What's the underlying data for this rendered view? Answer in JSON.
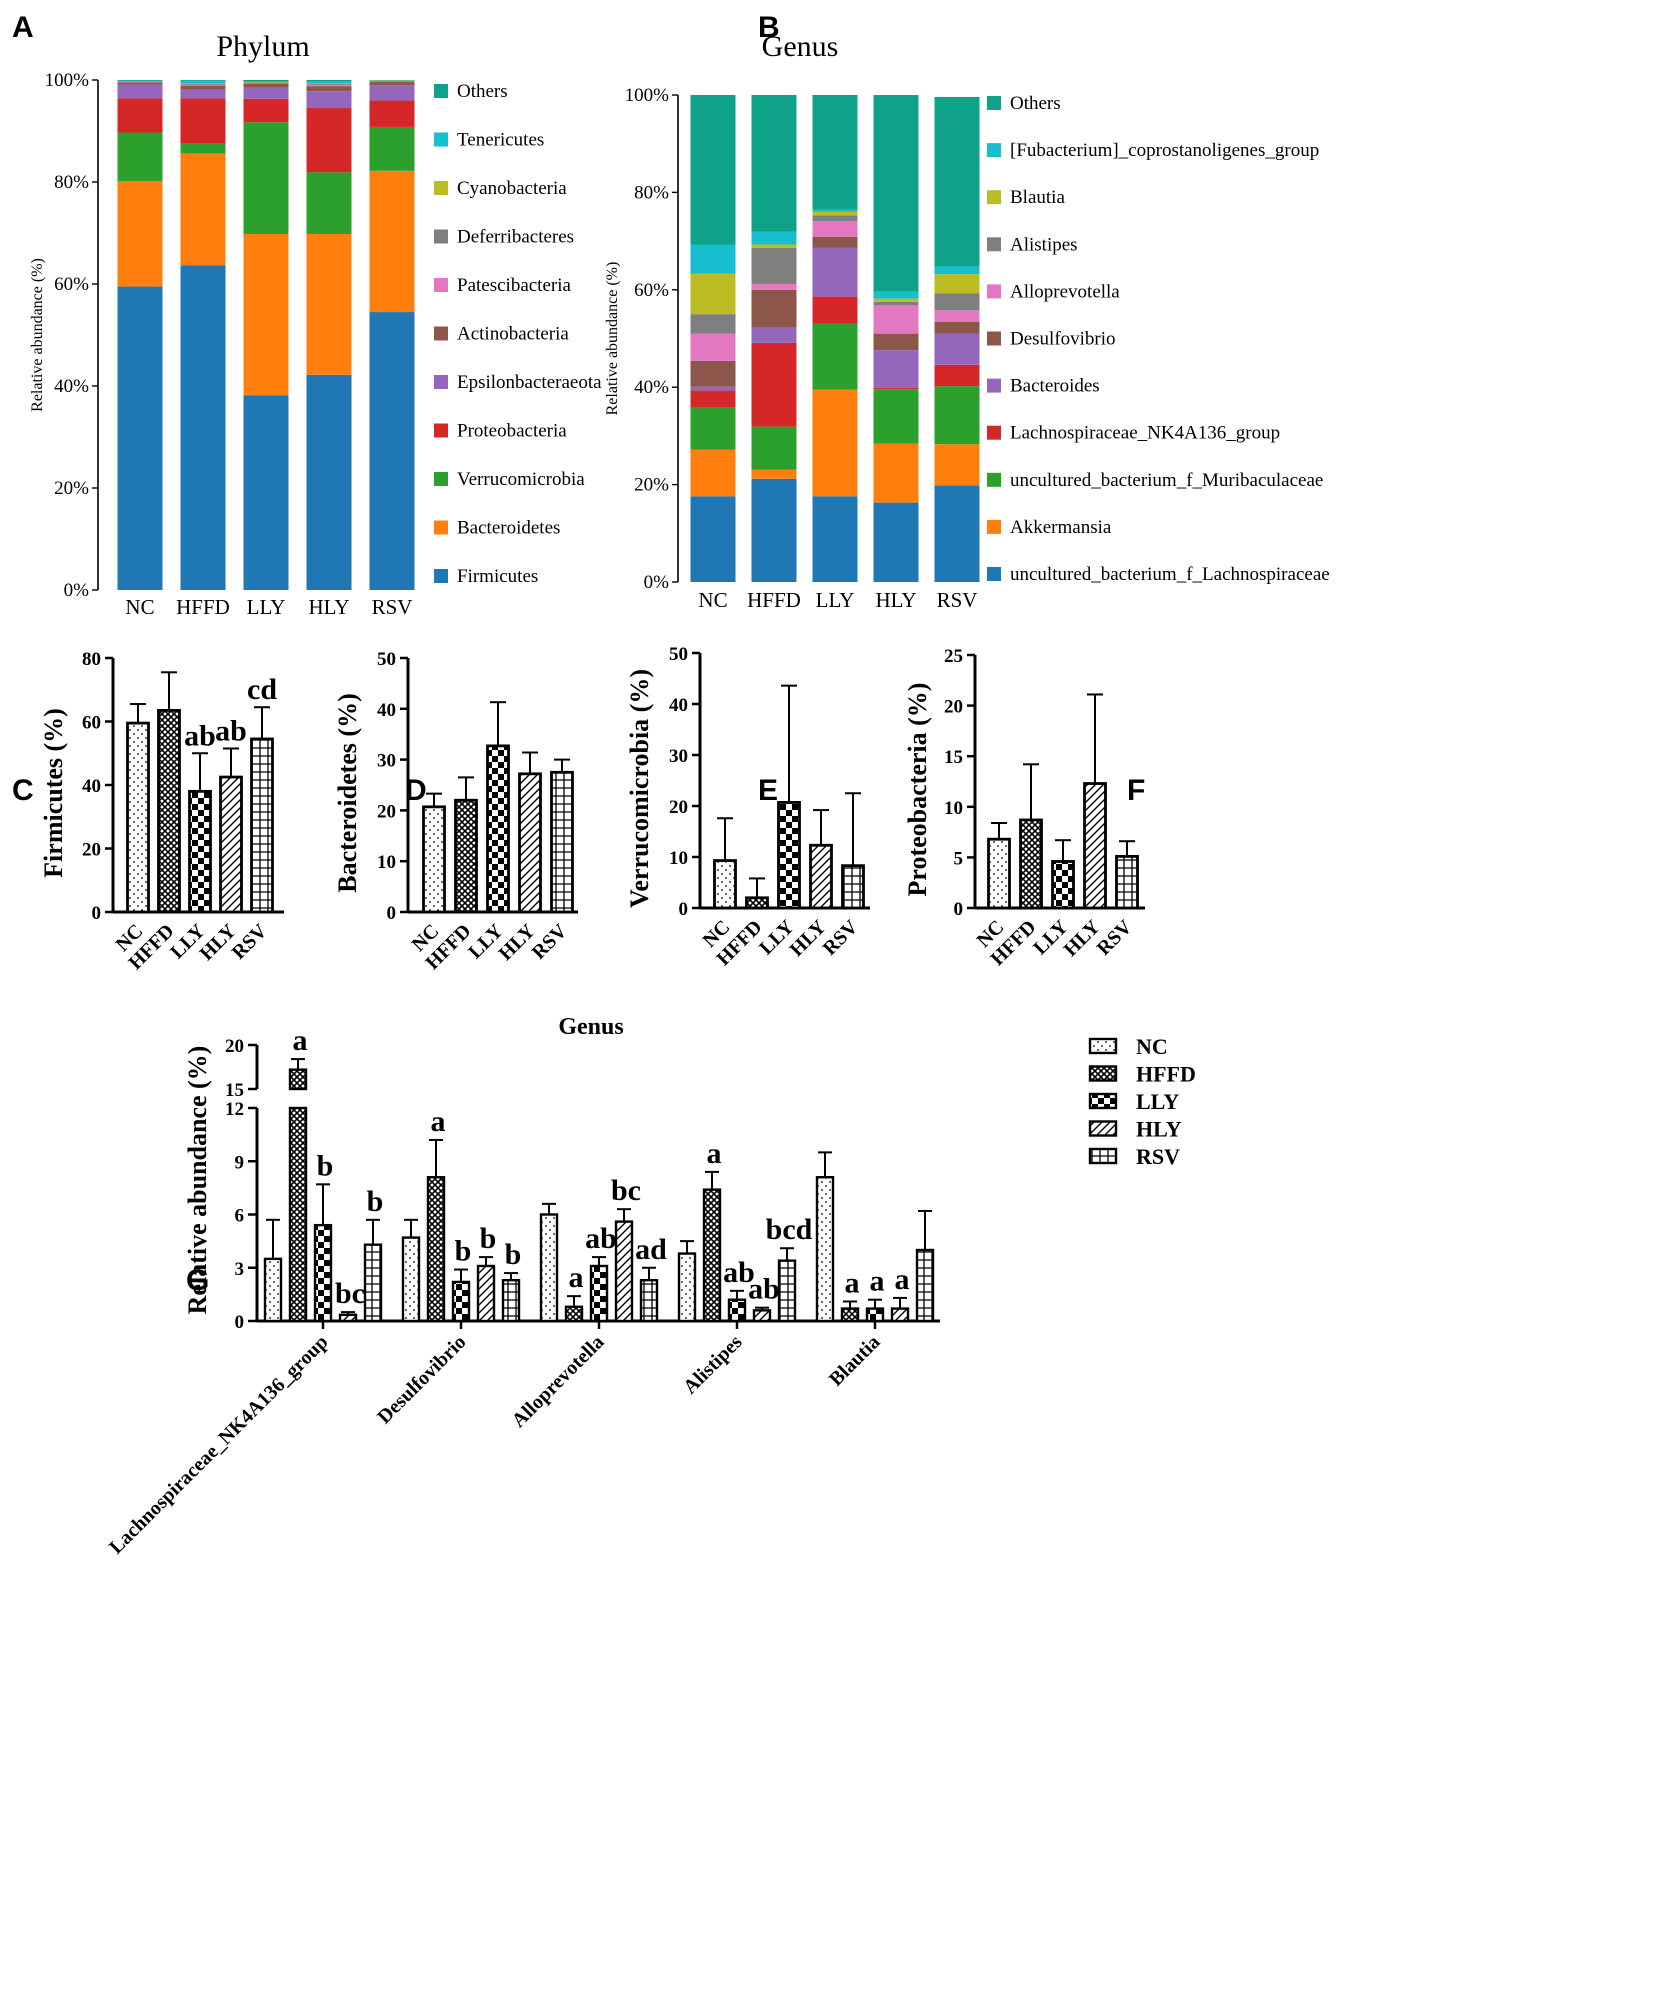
{
  "panels": {
    "A": "A",
    "B": "B",
    "C": "C",
    "D": "D",
    "E": "E",
    "F": "F",
    "G": "G"
  },
  "colors": {
    "Others": "#0ea288",
    "Tenericutes": "#17becf",
    "Cyanobacteria": "#bcbd22",
    "Deferribacteres": "#7f7f7f",
    "Patescibacteria": "#e377c2",
    "Actinobacteria": "#8c564b",
    "Epsilonbacteraeota": "#9467bd",
    "Proteobacteria": "#d62728",
    "Verrucomicrobia": "#2ca02c",
    "Bacteroidetes": "#ff7f0e",
    "Firmicutes": "#1f77b4"
  },
  "chart_data": [
    {
      "id": "A",
      "type": "bar",
      "stacked": true,
      "title": "Phylum",
      "ylabel": "Relative abundance (%)",
      "ylim": [
        0,
        100
      ],
      "yticks": [
        "0%",
        "20%",
        "40%",
        "60%",
        "80%",
        "100%"
      ],
      "categories": [
        "NC",
        "HFFD",
        "LLY",
        "HLY",
        "RSV"
      ],
      "legend_order": [
        "Others",
        "Tenericutes",
        "Cyanobacteria",
        "Deferribacteres",
        "Patescibacteria",
        "Actinobacteria",
        "Epsilonbacteraeota",
        "Proteobacteria",
        "Verrucomicrobia",
        "Bacteroidetes",
        "Firmicutes"
      ],
      "legend_labels": [
        "Others",
        "Tenericutes",
        "Cyanobacteria",
        "Deferribacteres",
        "Patescibacteria",
        "Actinobacteria",
        "Epsilonbacteraeota",
        "Proteobacteria",
        "Verrucomicrobia",
        "Bacteroidetes",
        "Firmicutes"
      ],
      "series": [
        {
          "name": "Firmicutes",
          "values": [
            59.5,
            63.7,
            38.2,
            42.2,
            54.5
          ]
        },
        {
          "name": "Bacteroidetes",
          "values": [
            20.7,
            21.9,
            31.6,
            27.6,
            27.7
          ]
        },
        {
          "name": "Verrucomicrobia",
          "values": [
            9.5,
            1.9,
            21.9,
            12.1,
            8.6
          ]
        },
        {
          "name": "Proteobacteria",
          "values": [
            6.7,
            8.9,
            4.6,
            12.6,
            5.2
          ]
        },
        {
          "name": "Epsilonbacteraeota",
          "values": [
            2.7,
            1.7,
            2.2,
            3.3,
            3.0
          ]
        },
        {
          "name": "Actinobacteria",
          "values": [
            0.4,
            0.8,
            0.8,
            1.0,
            0.6
          ]
        },
        {
          "name": "Patescibacteria",
          "values": [
            0.1,
            0.2,
            0.1,
            0.3,
            0.1
          ]
        },
        {
          "name": "Deferribacteres",
          "values": [
            0.1,
            0.2,
            0.1,
            0.2,
            0.1
          ]
        },
        {
          "name": "Cyanobacteria",
          "values": [
            0.1,
            0.1,
            0.1,
            0.1,
            0.1
          ]
        },
        {
          "name": "Tenericutes",
          "values": [
            0.1,
            0.5,
            0.2,
            0.4,
            0.1
          ]
        },
        {
          "name": "Others",
          "values": [
            0.1,
            0.1,
            0.2,
            0.2,
            0.0
          ]
        }
      ]
    },
    {
      "id": "B",
      "type": "bar",
      "stacked": true,
      "title": "Genus",
      "ylabel": "Relative abundance (%)",
      "ylim": [
        0,
        100
      ],
      "yticks": [
        "0%",
        "20%",
        "40%",
        "60%",
        "80%",
        "100%"
      ],
      "categories": [
        "NC",
        "HFFD",
        "LLY",
        "HLY",
        "RSV"
      ],
      "legend_labels": [
        "Others",
        "[Fubacterium]_coprostanoligenes_group",
        "Blautia",
        "Alistipes",
        "Alloprevotella",
        "Desulfovibrio",
        "Bacteroides",
        "Lachnospiraceae_NK4A136_group",
        "uncultured_bacterium_f_Muribaculaceae",
        "Akkermansia",
        "uncultured_bacterium_f_Lachnospiraceae"
      ],
      "series": [
        {
          "name": "uncultured_bacterium_f_Lachnospiraceae",
          "color": "#1f77b4",
          "values": [
            17.6,
            21.2,
            17.6,
            16.3,
            19.8
          ]
        },
        {
          "name": "Akkermansia",
          "color": "#ff7f0e",
          "values": [
            9.6,
            1.9,
            21.9,
            12.1,
            8.5
          ]
        },
        {
          "name": "uncultured_bacterium_f_Muribaculaceae",
          "color": "#2ca02c",
          "values": [
            8.6,
            8.8,
            13.5,
            11.2,
            11.9
          ]
        },
        {
          "name": "Lachnospiraceae_NK4A136_group",
          "color": "#d62728",
          "values": [
            3.5,
            17.2,
            5.6,
            0.3,
            4.4
          ]
        },
        {
          "name": "Bacteroides",
          "color": "#9467bd",
          "values": [
            0.8,
            3.1,
            10.0,
            7.7,
            6.4
          ]
        },
        {
          "name": "Desulfovibrio",
          "color": "#8c564b",
          "values": [
            5.3,
            7.8,
            2.3,
            3.4,
            2.4
          ]
        },
        {
          "name": "Alloprevotella",
          "color": "#e377c2",
          "values": [
            5.6,
            1.2,
            3.2,
            5.8,
            2.4
          ]
        },
        {
          "name": "Alistipes",
          "color": "#7f7f7f",
          "values": [
            4.0,
            7.4,
            1.2,
            0.7,
            3.5
          ]
        },
        {
          "name": "Blautia",
          "color": "#bcbd22",
          "values": [
            8.3,
            0.7,
            0.7,
            0.7,
            3.9
          ]
        },
        {
          "name": "[Fubacterium]_coprostanoligenes_group",
          "color": "#17becf",
          "values": [
            6.0,
            2.6,
            0.5,
            1.4,
            1.6
          ]
        },
        {
          "name": "Others",
          "color": "#0ea288",
          "values": [
            30.7,
            28.1,
            23.5,
            40.4,
            34.8
          ]
        }
      ]
    },
    {
      "id": "C",
      "type": "bar",
      "ylabel": "Firmicutes (%)",
      "ylim": [
        0,
        80
      ],
      "ytick_step": 20,
      "categories": [
        "NC",
        "HFFD",
        "LLY",
        "HLY",
        "RSV"
      ],
      "values": [
        59.5,
        63.5,
        38,
        42.5,
        54.5
      ],
      "errors": [
        6,
        12,
        12,
        9,
        10
      ],
      "labels": [
        "",
        "",
        "ab",
        "ab",
        "cd"
      ]
    },
    {
      "id": "D",
      "type": "bar",
      "ylabel": "Bacteroidetes (%)",
      "ylim": [
        0,
        50
      ],
      "ytick_step": 10,
      "categories": [
        "NC",
        "HFFD",
        "LLY",
        "HLY",
        "RSV"
      ],
      "values": [
        20.7,
        22,
        32.7,
        27.2,
        27.5
      ],
      "errors": [
        2.6,
        4.5,
        8.6,
        4.2,
        2.5
      ],
      "labels": [
        "",
        "",
        "",
        "",
        ""
      ]
    },
    {
      "id": "E",
      "type": "bar",
      "ylabel": "Verrucomicrobia (%)",
      "ylim": [
        0,
        50
      ],
      "ytick_step": 10,
      "categories": [
        "NC",
        "HFFD",
        "LLY",
        "HLY",
        "RSV"
      ],
      "values": [
        9.3,
        2,
        20.7,
        12.3,
        8.3
      ],
      "errors": [
        8.3,
        3.8,
        22.9,
        6.9,
        14.2
      ],
      "labels": [
        "",
        "",
        "",
        "",
        ""
      ]
    },
    {
      "id": "F",
      "type": "bar",
      "ylabel": "Proteobacteria (%)",
      "ylim": [
        0,
        25
      ],
      "ytick_step": 5,
      "categories": [
        "NC",
        "HFFD",
        "LLY",
        "HLY",
        "RSV"
      ],
      "values": [
        6.8,
        8.7,
        4.6,
        12.3,
        5.1
      ],
      "errors": [
        1.6,
        5.5,
        2.1,
        8.8,
        1.5
      ],
      "labels": [
        "",
        "",
        "",
        "",
        ""
      ]
    },
    {
      "id": "G",
      "type": "bar",
      "title": "Genus",
      "ylabel": "Relative abundance (%)",
      "ylim": [
        0,
        20
      ],
      "broken_axis": {
        "lower": [
          0,
          12
        ],
        "upper": [
          15,
          20
        ]
      },
      "yticks_lower": [
        0,
        3,
        6,
        9,
        12
      ],
      "yticks_upper": [
        15,
        20
      ],
      "groups": [
        "Lachnospiraceae_NK4A136_group",
        "Desulfovibrio",
        "Alloprevotella",
        "Alistipes",
        "Blautia"
      ],
      "series_names": [
        "NC",
        "HFFD",
        "LLY",
        "HLY",
        "RSV"
      ],
      "values": [
        [
          3.5,
          17.2,
          5.4,
          0.35,
          4.3
        ],
        [
          4.7,
          8.1,
          2.2,
          3.1,
          2.3
        ],
        [
          6.0,
          0.8,
          3.1,
          5.6,
          2.3
        ],
        [
          3.8,
          7.4,
          1.2,
          0.6,
          3.4
        ],
        [
          8.1,
          0.7,
          0.7,
          0.7,
          4.0
        ]
      ],
      "errors": [
        [
          2.2,
          1.2,
          2.3,
          0.15,
          1.4
        ],
        [
          1.0,
          2.1,
          0.7,
          0.5,
          0.4
        ],
        [
          0.6,
          0.6,
          0.5,
          0.7,
          0.7
        ],
        [
          0.7,
          1.0,
          0.5,
          0.15,
          0.7
        ],
        [
          1.4,
          0.4,
          0.5,
          0.6,
          2.2
        ]
      ],
      "labels": [
        [
          "",
          "a",
          "b",
          "bc",
          "b"
        ],
        [
          "",
          "a",
          "b",
          "b",
          "b"
        ],
        [
          "",
          "a",
          "ab",
          "bc",
          "ad"
        ],
        [
          "",
          "a",
          "ab",
          "ab",
          "bcd"
        ],
        [
          "",
          "a",
          "a",
          "a",
          ""
        ]
      ]
    }
  ]
}
